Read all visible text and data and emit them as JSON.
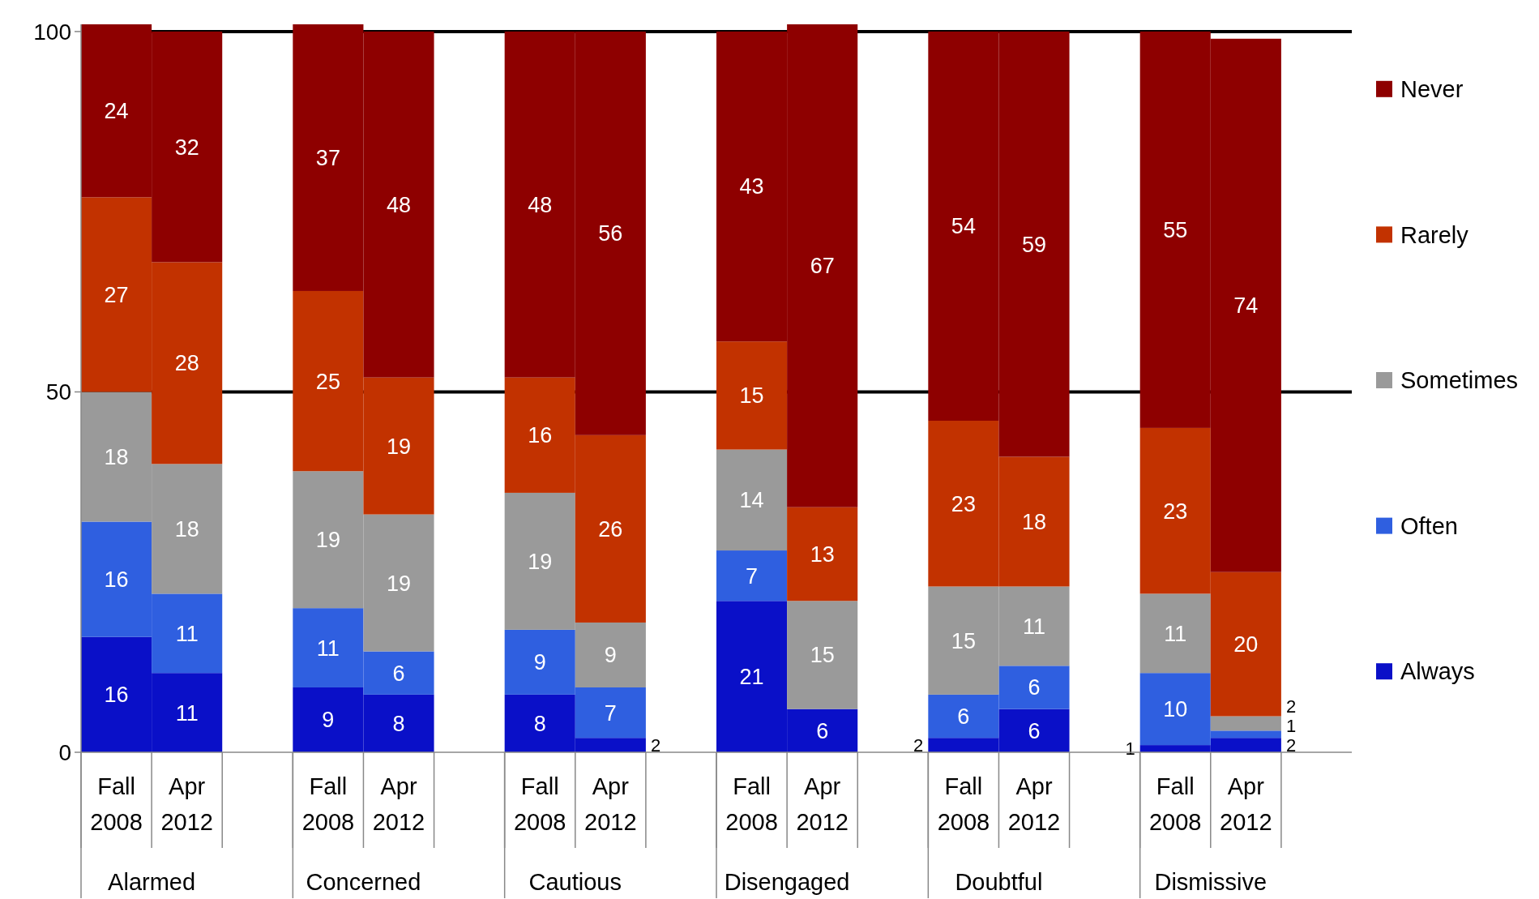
{
  "chart_data": {
    "type": "bar",
    "stacked": true,
    "categories": [
      "Fall 2008",
      "Apr 2012",
      "Fall 2008",
      "Apr 2012",
      "Fall 2008",
      "Apr 2012",
      "Fall 2008",
      "Apr 2012",
      "Fall 2008",
      "Apr 2012",
      "Fall 2008",
      "Apr 2012"
    ],
    "series": [
      {
        "name": "Always",
        "color": "#0a10c8",
        "values": [
          16,
          11,
          9,
          8,
          8,
          2,
          21,
          6,
          2,
          6,
          1,
          2
        ]
      },
      {
        "name": "Often",
        "color": "#2f5fe0",
        "values": [
          16,
          11,
          11,
          6,
          9,
          7,
          7,
          null,
          6,
          6,
          10,
          1
        ]
      },
      {
        "name": "Sometimes",
        "color": "#9a9a9a",
        "values": [
          18,
          18,
          19,
          19,
          19,
          9,
          14,
          15,
          15,
          11,
          11,
          2
        ]
      },
      {
        "name": "Rarely",
        "color": "#c23200",
        "values": [
          27,
          28,
          25,
          19,
          16,
          26,
          15,
          13,
          23,
          18,
          23,
          20
        ]
      },
      {
        "name": "Never",
        "color": "#8e0000",
        "values": [
          24,
          32,
          37,
          48,
          48,
          56,
          43,
          67,
          54,
          59,
          55,
          74
        ]
      }
    ],
    "annotations": [
      "Alarmed",
      "Concerned",
      "Cautious",
      "Disengaged",
      "Doubtful",
      "Dismissive"
    ],
    "ylim": [
      0,
      101
    ],
    "yticks": [
      0,
      50,
      100
    ],
    "grid": "y",
    "legend": "right",
    "data_labels": true
  }
}
